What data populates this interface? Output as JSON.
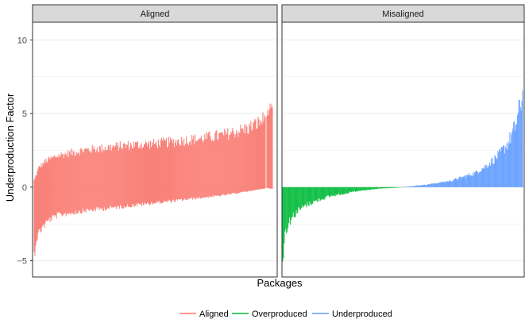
{
  "chart_data": {
    "type": "area",
    "facets": [
      "Aligned",
      "Misaligned"
    ],
    "xlabel": "Packages",
    "ylabel": "Underproduction Factor",
    "ylim": [
      -6.1,
      11.2
    ],
    "yticks": [
      -5,
      0,
      5,
      10
    ],
    "ytick_labels": [
      "−5",
      "0",
      "5",
      "10"
    ],
    "grid": true,
    "legend": {
      "position": "bottom",
      "entries": [
        {
          "name": "Aligned",
          "color": "#F8766D"
        },
        {
          "name": "Overproduced",
          "color": "#00BA38"
        },
        {
          "name": "Underproduced",
          "color": "#619CFF"
        }
      ]
    },
    "panels": [
      {
        "facet": "Aligned",
        "series": [
          {
            "name": "Aligned",
            "color": "#F8766D",
            "ymax_x": [
              0,
              0.02,
              0.05,
              0.1,
              0.2,
              0.3,
              0.4,
              0.5,
              0.6,
              0.7,
              0.8,
              0.9,
              0.95,
              1.0
            ],
            "ymax": [
              0.5,
              1.5,
              2.0,
              2.4,
              2.8,
              3.0,
              3.2,
              3.3,
              3.5,
              3.7,
              4.0,
              4.5,
              5.0,
              5.8
            ],
            "ymin_x": [
              0,
              0.01,
              0.03,
              0.06,
              0.1,
              0.2,
              0.3,
              0.4,
              0.5,
              0.6,
              0.7,
              0.8,
              0.9,
              1.0
            ],
            "ymin": [
              -5.1,
              -3.8,
              -3.1,
              -2.5,
              -2.1,
              -1.8,
              -1.6,
              -1.4,
              -1.2,
              -1.0,
              -0.8,
              -0.6,
              -0.3,
              0.0
            ]
          }
        ]
      },
      {
        "facet": "Misaligned",
        "series": [
          {
            "name": "Overproduced",
            "color": "#00BA38",
            "x": [
              0,
              0.01,
              0.03,
              0.06,
              0.1,
              0.15,
              0.2,
              0.3,
              0.4,
              0.5
            ],
            "y": [
              -5.5,
              -3.5,
              -2.6,
              -1.9,
              -1.4,
              -1.0,
              -0.7,
              -0.35,
              -0.12,
              -0.02
            ]
          },
          {
            "name": "Underproduced",
            "color": "#619CFF",
            "x": [
              0.5,
              0.6,
              0.7,
              0.8,
              0.85,
              0.9,
              0.94,
              0.97,
              1.0
            ],
            "y": [
              0.02,
              0.2,
              0.5,
              1.1,
              1.7,
              2.5,
              3.5,
              4.8,
              7.3
            ]
          }
        ]
      }
    ]
  }
}
